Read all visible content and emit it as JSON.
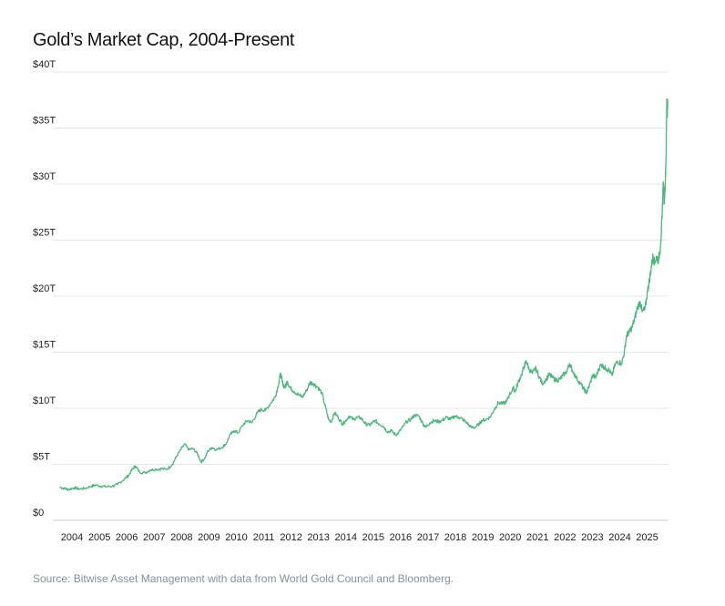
{
  "chart_data": {
    "type": "line",
    "title": "Gold’s Market Cap, 2004-Present",
    "xlabel": "",
    "ylabel": "",
    "ylim": [
      0,
      40
    ],
    "xlim": [
      2003.6,
      2025.78
    ],
    "y_ticks": [
      {
        "value": 0,
        "label": "$0"
      },
      {
        "value": 5,
        "label": "$5T"
      },
      {
        "value": 10,
        "label": "$10T"
      },
      {
        "value": 15,
        "label": "$15T"
      },
      {
        "value": 20,
        "label": "$20T"
      },
      {
        "value": 25,
        "label": "$25T"
      },
      {
        "value": 30,
        "label": "$30T"
      },
      {
        "value": 35,
        "label": "$35T"
      },
      {
        "value": 40,
        "label": "$40T"
      }
    ],
    "x_ticks": [
      {
        "value": 2004,
        "label": "2004"
      },
      {
        "value": 2005,
        "label": "2005"
      },
      {
        "value": 2006,
        "label": "2006"
      },
      {
        "value": 2007,
        "label": "2007"
      },
      {
        "value": 2008,
        "label": "2008"
      },
      {
        "value": 2009,
        "label": "2009"
      },
      {
        "value": 2010,
        "label": "2010"
      },
      {
        "value": 2011,
        "label": "2011"
      },
      {
        "value": 2012,
        "label": "2012"
      },
      {
        "value": 2013,
        "label": "2013"
      },
      {
        "value": 2014,
        "label": "2014"
      },
      {
        "value": 2015,
        "label": "2015"
      },
      {
        "value": 2016,
        "label": "2016"
      },
      {
        "value": 2017,
        "label": "2017"
      },
      {
        "value": 2018,
        "label": "2018"
      },
      {
        "value": 2019,
        "label": "2019"
      },
      {
        "value": 2020,
        "label": "2020"
      },
      {
        "value": 2021,
        "label": "2021"
      },
      {
        "value": 2022,
        "label": "2022"
      },
      {
        "value": 2023,
        "label": "2023"
      },
      {
        "value": 2024,
        "label": "2024"
      },
      {
        "value": 2025,
        "label": "2025"
      }
    ],
    "grid": true,
    "legend": "none",
    "series": [
      {
        "color": "#4cb87a",
        "unit": "trillion USD",
        "points": [
          [
            2003.6,
            2.95
          ],
          [
            2003.75,
            2.85
          ],
          [
            2003.9,
            2.75
          ],
          [
            2004.1,
            2.9
          ],
          [
            2004.3,
            2.8
          ],
          [
            2004.5,
            2.85
          ],
          [
            2004.75,
            3.05
          ],
          [
            2004.9,
            3.15
          ],
          [
            2005.1,
            3.05
          ],
          [
            2005.3,
            3.0
          ],
          [
            2005.5,
            3.05
          ],
          [
            2005.7,
            3.2
          ],
          [
            2005.9,
            3.6
          ],
          [
            2006.1,
            4.0
          ],
          [
            2006.25,
            4.6
          ],
          [
            2006.35,
            4.85
          ],
          [
            2006.5,
            4.3
          ],
          [
            2006.7,
            4.25
          ],
          [
            2006.9,
            4.5
          ],
          [
            2007.1,
            4.55
          ],
          [
            2007.3,
            4.6
          ],
          [
            2007.5,
            4.55
          ],
          [
            2007.7,
            5.0
          ],
          [
            2007.85,
            5.7
          ],
          [
            2008.0,
            6.3
          ],
          [
            2008.15,
            6.8
          ],
          [
            2008.3,
            6.3
          ],
          [
            2008.45,
            6.4
          ],
          [
            2008.6,
            6.0
          ],
          [
            2008.75,
            5.2
          ],
          [
            2008.9,
            5.6
          ],
          [
            2009.0,
            6.2
          ],
          [
            2009.15,
            6.5
          ],
          [
            2009.3,
            6.3
          ],
          [
            2009.5,
            6.5
          ],
          [
            2009.65,
            6.8
          ],
          [
            2009.8,
            7.6
          ],
          [
            2009.95,
            8.0
          ],
          [
            2010.1,
            7.8
          ],
          [
            2010.3,
            8.6
          ],
          [
            2010.45,
            8.9
          ],
          [
            2010.6,
            8.7
          ],
          [
            2010.8,
            9.6
          ],
          [
            2010.95,
            9.9
          ],
          [
            2011.1,
            9.8
          ],
          [
            2011.3,
            10.5
          ],
          [
            2011.45,
            11.0
          ],
          [
            2011.55,
            11.9
          ],
          [
            2011.65,
            13.1
          ],
          [
            2011.72,
            12.3
          ],
          [
            2011.8,
            11.8
          ],
          [
            2011.9,
            12.4
          ],
          [
            2012.0,
            11.8
          ],
          [
            2012.15,
            11.5
          ],
          [
            2012.3,
            11.2
          ],
          [
            2012.45,
            11.0
          ],
          [
            2012.6,
            11.6
          ],
          [
            2012.72,
            12.3
          ],
          [
            2012.85,
            12.2
          ],
          [
            2013.0,
            11.9
          ],
          [
            2013.15,
            11.4
          ],
          [
            2013.3,
            10.0
          ],
          [
            2013.4,
            9.0
          ],
          [
            2013.5,
            8.8
          ],
          [
            2013.62,
            9.6
          ],
          [
            2013.75,
            9.2
          ],
          [
            2013.9,
            8.6
          ],
          [
            2014.0,
            8.8
          ],
          [
            2014.15,
            9.3
          ],
          [
            2014.3,
            9.0
          ],
          [
            2014.45,
            9.2
          ],
          [
            2014.6,
            9.1
          ],
          [
            2014.75,
            8.6
          ],
          [
            2014.9,
            8.5
          ],
          [
            2015.0,
            8.7
          ],
          [
            2015.1,
            8.9
          ],
          [
            2015.25,
            8.6
          ],
          [
            2015.4,
            8.4
          ],
          [
            2015.55,
            7.9
          ],
          [
            2015.7,
            8.0
          ],
          [
            2015.85,
            7.6
          ],
          [
            2015.95,
            7.8
          ],
          [
            2016.1,
            8.3
          ],
          [
            2016.25,
            8.8
          ],
          [
            2016.4,
            9.0
          ],
          [
            2016.55,
            9.4
          ],
          [
            2016.7,
            9.3
          ],
          [
            2016.85,
            8.6
          ],
          [
            2016.95,
            8.3
          ],
          [
            2017.1,
            8.7
          ],
          [
            2017.25,
            8.9
          ],
          [
            2017.4,
            8.8
          ],
          [
            2017.55,
            8.9
          ],
          [
            2017.7,
            9.2
          ],
          [
            2017.85,
            9.0
          ],
          [
            2018.0,
            9.3
          ],
          [
            2018.15,
            9.2
          ],
          [
            2018.3,
            9.0
          ],
          [
            2018.45,
            8.7
          ],
          [
            2018.6,
            8.3
          ],
          [
            2018.75,
            8.3
          ],
          [
            2018.9,
            8.6
          ],
          [
            2019.0,
            8.9
          ],
          [
            2019.15,
            9.0
          ],
          [
            2019.3,
            9.2
          ],
          [
            2019.45,
            9.9
          ],
          [
            2019.6,
            10.5
          ],
          [
            2019.75,
            10.4
          ],
          [
            2019.9,
            10.6
          ],
          [
            2020.0,
            11.2
          ],
          [
            2020.15,
            11.8
          ],
          [
            2020.22,
            11.5
          ],
          [
            2020.32,
            12.3
          ],
          [
            2020.45,
            13.0
          ],
          [
            2020.55,
            13.8
          ],
          [
            2020.62,
            14.2
          ],
          [
            2020.72,
            13.5
          ],
          [
            2020.85,
            13.1
          ],
          [
            2020.95,
            13.6
          ],
          [
            2021.1,
            12.8
          ],
          [
            2021.2,
            12.2
          ],
          [
            2021.35,
            12.6
          ],
          [
            2021.45,
            13.0
          ],
          [
            2021.55,
            12.8
          ],
          [
            2021.7,
            12.5
          ],
          [
            2021.85,
            12.6
          ],
          [
            2021.95,
            12.9
          ],
          [
            2022.1,
            13.3
          ],
          [
            2022.2,
            14.0
          ],
          [
            2022.3,
            13.4
          ],
          [
            2022.45,
            12.7
          ],
          [
            2022.6,
            12.2
          ],
          [
            2022.72,
            11.7
          ],
          [
            2022.82,
            11.4
          ],
          [
            2022.92,
            12.0
          ],
          [
            2023.05,
            13.0
          ],
          [
            2023.15,
            12.7
          ],
          [
            2023.25,
            13.4
          ],
          [
            2023.35,
            13.9
          ],
          [
            2023.45,
            13.7
          ],
          [
            2023.55,
            13.5
          ],
          [
            2023.65,
            13.4
          ],
          [
            2023.75,
            12.9
          ],
          [
            2023.85,
            13.8
          ],
          [
            2023.95,
            14.2
          ],
          [
            2024.1,
            14.0
          ],
          [
            2024.2,
            15.0
          ],
          [
            2024.28,
            16.5
          ],
          [
            2024.38,
            16.8
          ],
          [
            2024.48,
            17.2
          ],
          [
            2024.58,
            18.0
          ],
          [
            2024.68,
            19.0
          ],
          [
            2024.78,
            19.5
          ],
          [
            2024.85,
            18.6
          ],
          [
            2024.95,
            18.8
          ],
          [
            2025.05,
            20.5
          ],
          [
            2025.12,
            21.5
          ],
          [
            2025.18,
            22.5
          ],
          [
            2025.25,
            23.6
          ],
          [
            2025.3,
            23.0
          ],
          [
            2025.38,
            23.5
          ],
          [
            2025.45,
            23.2
          ],
          [
            2025.52,
            24.5
          ],
          [
            2025.58,
            27.0
          ],
          [
            2025.62,
            30.2
          ],
          [
            2025.66,
            28.5
          ],
          [
            2025.7,
            30.5
          ],
          [
            2025.73,
            33.5
          ],
          [
            2025.75,
            37.6
          ],
          [
            2025.77,
            36.5
          ],
          [
            2025.78,
            37.0
          ]
        ]
      }
    ]
  },
  "source_note": "Source: Bitwise Asset Management with data from World Gold Council and Bloomberg."
}
